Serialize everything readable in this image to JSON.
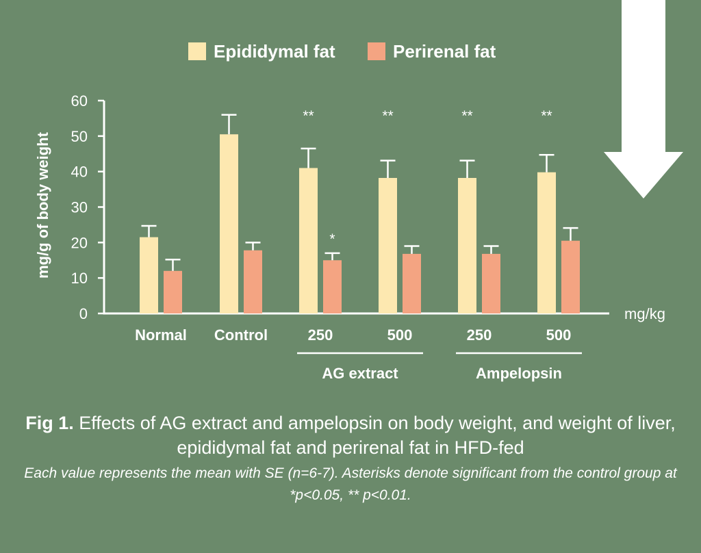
{
  "chart_data": {
    "type": "bar",
    "categories": [
      "Normal",
      "Control",
      "250",
      "500",
      "250",
      "500"
    ],
    "groups": [
      {
        "label": "AG extract",
        "categories": [
          2,
          3
        ]
      },
      {
        "label": "Ampelopsin",
        "categories": [
          4,
          5
        ]
      }
    ],
    "series": [
      {
        "name": "Epididymal fat",
        "color": "#fde8b0",
        "values": [
          21.5,
          50.5,
          41,
          38.2,
          38.2,
          39.8
        ],
        "errors": [
          3.2,
          5.5,
          5.5,
          4.9,
          4.9,
          4.9
        ],
        "significance": [
          "",
          "",
          "**",
          "**",
          "**",
          "**"
        ]
      },
      {
        "name": "Perirenal fat",
        "color": "#f4a482",
        "values": [
          12,
          17.8,
          15,
          16.8,
          16.8,
          20.5
        ],
        "errors": [
          3.2,
          2.2,
          2.0,
          2.2,
          2.2,
          3.6
        ],
        "significance": [
          "",
          "",
          "*",
          "",
          "",
          ""
        ]
      }
    ],
    "ylabel": "mg/g of body weight",
    "xunit": "mg/kg",
    "ylim": [
      0,
      60
    ],
    "yticks": [
      0,
      10,
      20,
      30,
      40,
      50,
      60
    ],
    "legend_position": "top",
    "grid": false
  },
  "caption": {
    "label": "Fig 1.",
    "text": "Effects of AG extract and ampelopsin on body weight, and weight of liver, epididymal fat and perirenal fat in HFD-fed",
    "note": "Each value represents the mean with SE (n=6-7). Asterisks denote significant from the control group at *p<0.05, ** p<0.01."
  },
  "colors": {
    "background": "#6b8a6b",
    "axis": "#ffffff",
    "arrow": "#ffffff"
  },
  "icons": {
    "arrow": "down-arrow-icon"
  }
}
